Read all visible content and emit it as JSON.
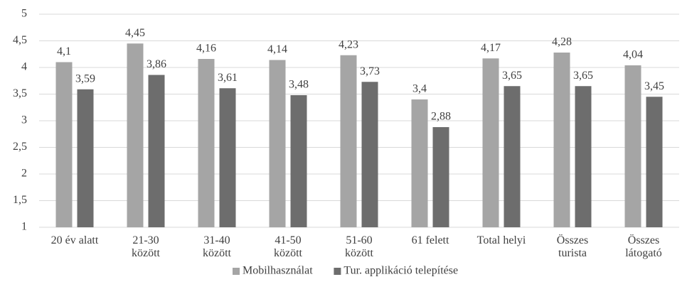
{
  "chart_data": {
    "type": "bar",
    "categories": [
      "20 év alatt",
      "21-30\nközött",
      "31-40\nközött",
      "41-50\nközött",
      "51-60\nközött",
      "61 felett",
      "Total helyi",
      "Összes\nturista",
      "Összes\nlátogató"
    ],
    "series": [
      {
        "name": "Mobilhasználat",
        "color": "#a5a5a5",
        "values": [
          4.1,
          4.45,
          4.16,
          4.14,
          4.23,
          3.4,
          4.17,
          4.28,
          4.04
        ],
        "value_labels": [
          "4,1",
          "4,45",
          "4,16",
          "4,14",
          "4,23",
          "3,4",
          "4,17",
          "4,28",
          "4,04"
        ]
      },
      {
        "name": "Tur. applikáció telepítése",
        "color": "#6d6d6d",
        "values": [
          3.59,
          3.86,
          3.61,
          3.48,
          3.73,
          2.88,
          3.65,
          3.65,
          3.45
        ],
        "value_labels": [
          "3,59",
          "3,86",
          "3,61",
          "3,48",
          "3,73",
          "2,88",
          "3,65",
          "3,65",
          "3,45"
        ]
      }
    ],
    "ylim": [
      1,
      5
    ],
    "yticks": [
      1,
      {
        "value": 1.5,
        "label": "1,5"
      },
      2,
      {
        "value": 2.5,
        "label": "2,5"
      },
      3,
      {
        "value": 3.5,
        "label": "3,5"
      },
      4,
      {
        "value": 4.5,
        "label": "4,5"
      },
      5
    ],
    "grid": true,
    "legend": "bottom"
  }
}
